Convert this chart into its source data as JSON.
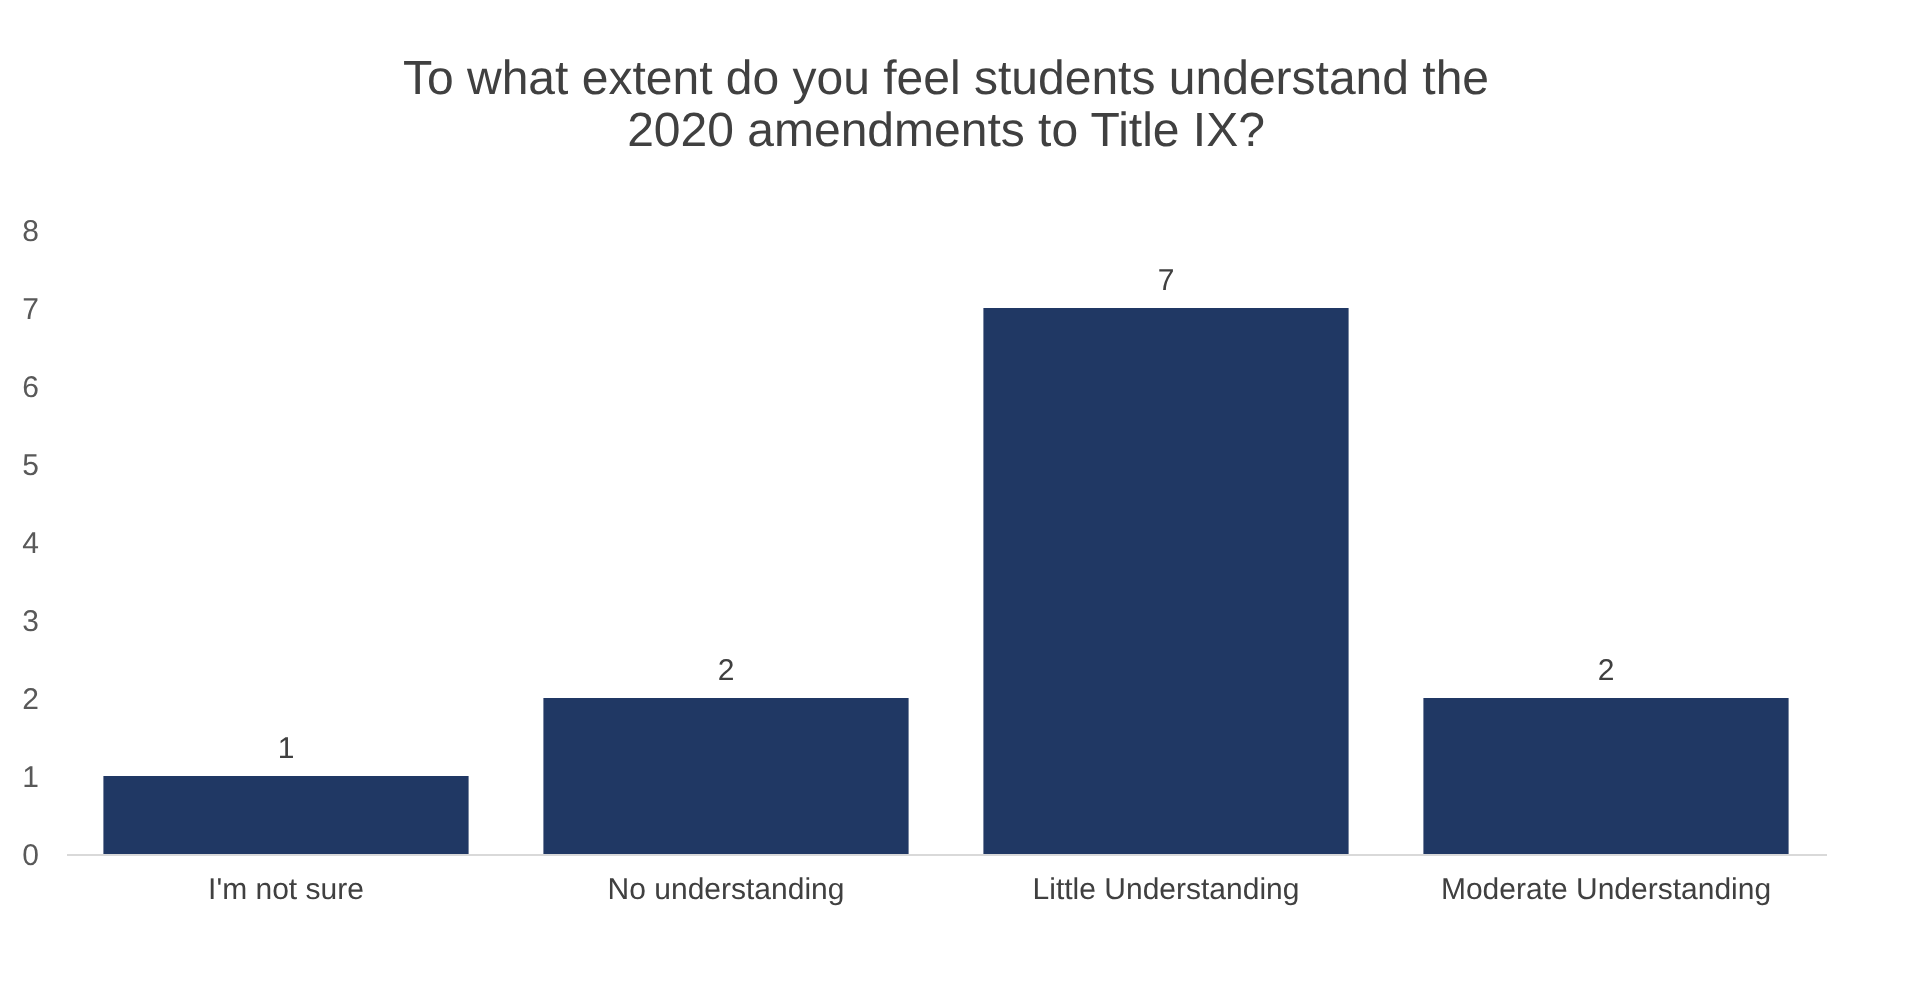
{
  "chart_data": {
    "type": "bar",
    "title": "To what extent do you feel students understand the\n2020 amendments to Title IX?",
    "categories": [
      "I'm not sure",
      "No understanding",
      "Little Understanding",
      "Moderate Understanding"
    ],
    "values": [
      1,
      2,
      7,
      2
    ],
    "color": "#203864",
    "ylim": [
      0,
      8
    ],
    "yticks": [
      0,
      1,
      2,
      3,
      4,
      5,
      6,
      7,
      8
    ],
    "grid": false,
    "data_labels": true
  }
}
